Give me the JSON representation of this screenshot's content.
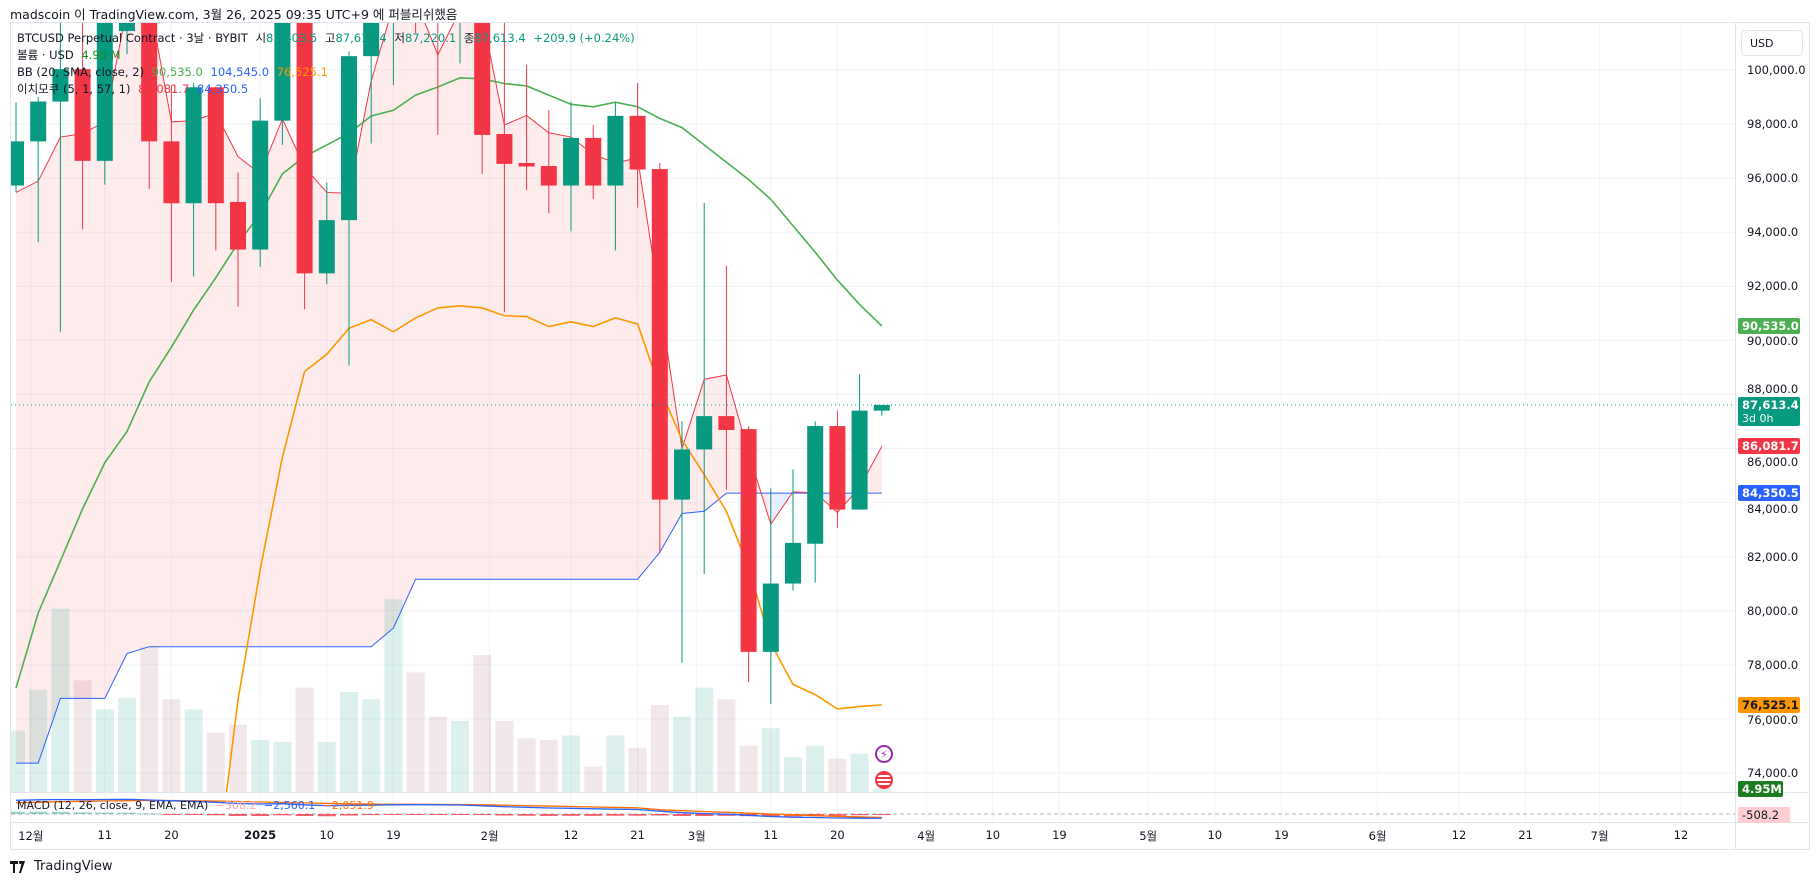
{
  "header": {
    "published_by": "madscoin 이 TradingView.com, 3월 26, 2025 09:35 UTC+9 에 퍼블리쉬했음"
  },
  "legend": {
    "symbol": "BTCUSD Perpetual Contract · 3날 · BYBIT",
    "open_label": "시",
    "open": "87,403.5",
    "high_label": "고",
    "high": "87,613.4",
    "low_label": "저",
    "low": "87,220.1",
    "close_label": "종",
    "close": "87,613.4",
    "change": "+209.9 (+0.24%)",
    "volume_label": "볼륨 · USD",
    "volume": "4.95 M",
    "bb_label": "BB (20, SMA, close, 2)",
    "bb_basis": "90,535.0",
    "bb_upper": "104,545.0",
    "bb_lower": "76,525.1",
    "ichimoku_label": "이치모쿠 (5, 1, 57, 1)",
    "ichimoku_conversion": "86,081.7",
    "ichimoku_base": "84,350.5",
    "macd_label": "MACD (12, 26, close, 9, EMA, EMA)",
    "macd_hist": "−508.2",
    "macd_line": "−2,560.1",
    "macd_signal": "−2,051.9"
  },
  "axis": {
    "currency": "USD",
    "price_ticks": [
      "100,000.0",
      "98,000.0",
      "96,000.0",
      "94,000.0",
      "92,000.0",
      "90,000.0",
      "88,000.0",
      "86,000.0",
      "84,000.0",
      "82,000.0",
      "80,000.0",
      "78,000.0",
      "76,000.0",
      "74,000.0"
    ],
    "price_tick_values": [
      100000,
      98000,
      96000,
      94000,
      92000,
      90000,
      88000,
      86000,
      84000,
      82000,
      80000,
      78000,
      76000,
      74000
    ],
    "time_labels": [
      {
        "label": "12월",
        "date": "2024-12-01"
      },
      {
        "label": "11",
        "date": "2024-12-11"
      },
      {
        "label": "20",
        "date": "2024-12-20"
      },
      {
        "label": "2025",
        "date": "2025-01-01",
        "bold": true
      },
      {
        "label": "10",
        "date": "2025-01-10"
      },
      {
        "label": "19",
        "date": "2025-01-19"
      },
      {
        "label": "2월",
        "date": "2025-02-01"
      },
      {
        "label": "12",
        "date": "2025-02-12"
      },
      {
        "label": "21",
        "date": "2025-02-21"
      },
      {
        "label": "3월",
        "date": "2025-03-01"
      },
      {
        "label": "11",
        "date": "2025-03-11"
      },
      {
        "label": "20",
        "date": "2025-03-20"
      },
      {
        "label": "4월",
        "date": "2025-04-01"
      },
      {
        "label": "10",
        "date": "2025-04-10"
      },
      {
        "label": "19",
        "date": "2025-04-19"
      },
      {
        "label": "5월",
        "date": "2025-05-01"
      },
      {
        "label": "10",
        "date": "2025-05-10"
      },
      {
        "label": "19",
        "date": "2025-05-19"
      },
      {
        "label": "6월",
        "date": "2025-06-01"
      },
      {
        "label": "12",
        "date": "2025-06-12"
      },
      {
        "label": "21",
        "date": "2025-06-21"
      },
      {
        "label": "7월",
        "date": "2025-07-01"
      },
      {
        "label": "12",
        "date": "2025-07-12"
      }
    ]
  },
  "tags": [
    {
      "name": "bb-basis-tag",
      "value": 90535.0,
      "text": "90,535.0",
      "bg": "#4caf50",
      "fg": "#ffffff"
    },
    {
      "name": "last-price-tag",
      "value": 87613.4,
      "text": "87,613.4",
      "sub": "3d 0h",
      "bg": "#089981",
      "fg": "#ffffff"
    },
    {
      "name": "ichimoku-conversion-tag",
      "value": 86081.7,
      "text": "86,081.7",
      "bg": "#f23645",
      "fg": "#ffffff"
    },
    {
      "name": "ichimoku-base-tag",
      "value": 84350.5,
      "text": "84,350.5",
      "bg": "#2962ff",
      "fg": "#ffffff"
    },
    {
      "name": "bb-lower-tag",
      "value": 76525.1,
      "text": "76,525.1",
      "bg": "#ff9800",
      "fg": "#131722"
    }
  ],
  "volume_tag": {
    "text": "4.95M",
    "bg": "#1b7d1f"
  },
  "macd_tag": {
    "text": "-508.2",
    "bg": "#ffcdd2"
  },
  "icons": {
    "events": "lightning-icon",
    "economic": "us-flag-icon"
  },
  "footer": {
    "brand": "TradingView"
  },
  "colors": {
    "up": "#089981",
    "down": "#f23645",
    "bb_basis": "#4caf50",
    "bb_lower": "#ff9800",
    "conversion": "#f23645",
    "base": "#2962ff",
    "macd": "#2962ff",
    "signal": "#ff6d00"
  },
  "chart_data": {
    "type": "candlestick",
    "interval": "3D",
    "ylim": [
      73000,
      101600
    ],
    "grid": true,
    "candles": [
      {
        "t": "2024-11-29",
        "o": 95728,
        "h": 98800,
        "l": 95472,
        "c": 97360
      },
      {
        "t": "2024-12-02",
        "o": 97360,
        "h": 99000,
        "l": 93632,
        "c": 98832
      },
      {
        "t": "2024-12-05",
        "o": 98832,
        "h": 101800,
        "l": 90320,
        "c": 100032
      },
      {
        "t": "2024-12-08",
        "o": 100032,
        "h": 101900,
        "l": 94112,
        "c": 96640
      },
      {
        "t": "2024-12-11",
        "o": 96640,
        "h": 103600,
        "l": 95760,
        "c": 102500
      },
      {
        "t": "2024-12-14",
        "o": 101440,
        "h": 104500,
        "l": 100592,
        "c": 103800
      },
      {
        "t": "2024-12-17",
        "o": 103800,
        "h": 104800,
        "l": 95600,
        "c": 97360
      },
      {
        "t": "2024-12-20",
        "o": 97360,
        "h": 99440,
        "l": 92160,
        "c": 95072
      },
      {
        "t": "2024-12-23",
        "o": 95072,
        "h": 99520,
        "l": 92368,
        "c": 99360
      },
      {
        "t": "2024-12-26",
        "o": 99360,
        "h": 99400,
        "l": 93328,
        "c": 95072
      },
      {
        "t": "2024-12-29",
        "o": 95120,
        "h": 96208,
        "l": 91248,
        "c": 93360
      },
      {
        "t": "2025-01-01",
        "o": 93360,
        "h": 98960,
        "l": 92720,
        "c": 98128
      },
      {
        "t": "2025-01-04",
        "o": 98128,
        "h": 103500,
        "l": 97232,
        "c": 102600
      },
      {
        "t": "2025-01-07",
        "o": 102600,
        "h": 103200,
        "l": 91152,
        "c": 92480
      },
      {
        "t": "2025-01-10",
        "o": 92480,
        "h": 95840,
        "l": 92080,
        "c": 94448
      },
      {
        "t": "2025-01-13",
        "o": 94448,
        "h": 100688,
        "l": 89072,
        "c": 100512
      },
      {
        "t": "2025-01-16",
        "o": 100512,
        "h": 103000,
        "l": 97280,
        "c": 102400
      },
      {
        "t": "2025-01-19",
        "o": 102400,
        "h": 105500,
        "l": 99440,
        "c": 104200
      },
      {
        "t": "2025-01-22",
        "o": 104200,
        "h": 105800,
        "l": 101360,
        "c": 102800
      },
      {
        "t": "2025-01-25",
        "o": 102800,
        "h": 104000,
        "l": 97600,
        "c": 102000
      },
      {
        "t": "2025-01-28",
        "o": 102000,
        "h": 105000,
        "l": 100240,
        "c": 104000
      },
      {
        "t": "2025-01-31",
        "o": 104000,
        "h": 105200,
        "l": 96160,
        "c": 97600
      },
      {
        "t": "2025-02-03",
        "o": 97632,
        "h": 102500,
        "l": 91040,
        "c": 96528
      },
      {
        "t": "2025-02-06",
        "o": 96560,
        "h": 100192,
        "l": 95552,
        "c": 96432
      },
      {
        "t": "2025-02-09",
        "o": 96448,
        "h": 98512,
        "l": 94704,
        "c": 95728
      },
      {
        "t": "2025-02-12",
        "o": 95728,
        "h": 98832,
        "l": 94032,
        "c": 97488
      },
      {
        "t": "2025-02-15",
        "o": 97488,
        "h": 97968,
        "l": 95232,
        "c": 95728
      },
      {
        "t": "2025-02-18",
        "o": 95728,
        "h": 98800,
        "l": 93328,
        "c": 98304
      },
      {
        "t": "2025-02-21",
        "o": 98304,
        "h": 99520,
        "l": 94912,
        "c": 96320
      },
      {
        "t": "2025-02-24",
        "o": 96336,
        "h": 96560,
        "l": 82128,
        "c": 84112
      },
      {
        "t": "2025-02-27",
        "o": 84112,
        "h": 87008,
        "l": 78080,
        "c": 85968
      },
      {
        "t": "2025-03-02",
        "o": 85968,
        "h": 95088,
        "l": 81360,
        "c": 87200
      },
      {
        "t": "2025-03-05",
        "o": 87200,
        "h": 92768,
        "l": 84480,
        "c": 86688
      },
      {
        "t": "2025-03-08",
        "o": 86720,
        "h": 86832,
        "l": 77360,
        "c": 78480
      },
      {
        "t": "2025-03-11",
        "o": 78480,
        "h": 84528,
        "l": 76556,
        "c": 81008
      },
      {
        "t": "2025-03-14",
        "o": 81008,
        "h": 85232,
        "l": 80752,
        "c": 82512
      },
      {
        "t": "2025-03-17",
        "o": 82480,
        "h": 87008,
        "l": 81040,
        "c": 86832
      },
      {
        "t": "2025-03-20",
        "o": 86832,
        "h": 87408,
        "l": 83072,
        "c": 83744
      },
      {
        "t": "2025-03-23",
        "o": 83744,
        "h": 88752,
        "l": 83744,
        "c": 87403.5
      },
      {
        "t": "2025-03-26",
        "o": 87403.5,
        "h": 87613.4,
        "l": 87220.1,
        "c": 87613.4
      }
    ],
    "volume_millions": [
      85,
      141,
      253,
      154,
      114,
      130,
      200,
      128,
      114,
      82,
      93,
      72,
      69,
      144,
      69,
      138,
      128,
      266,
      165,
      104,
      98,
      189,
      98,
      74,
      72,
      78,
      35,
      78,
      61,
      120,
      104,
      144,
      128,
      64,
      88,
      48,
      64,
      46,
      53,
      4.95
    ],
    "bb_basis": [
      77143,
      79920,
      81843,
      83770,
      85480,
      86630,
      88470,
      89750,
      91120,
      92320,
      93600,
      94666,
      96160,
      96800,
      97230,
      97660,
      98300,
      98510,
      99070,
      99370,
      99710,
      99670,
      99500,
      99410,
      99070,
      98730,
      98640,
      98810,
      98640,
      98210,
      97870,
      97230,
      96590,
      95950,
      95220,
      94240,
      93260,
      92230,
      91330,
      90535.0
    ],
    "bb_lower": [
      null,
      null,
      null,
      null,
      null,
      null,
      null,
      null,
      null,
      70100,
      76700,
      81520,
      85680,
      88848,
      89488,
      90448,
      90768,
      90320,
      90832,
      91200,
      91280,
      91200,
      90912,
      90880,
      90512,
      90688,
      90512,
      90832,
      90608,
      88240,
      86320,
      85040,
      83680,
      81600,
      78800,
      77280,
      76900,
      76370,
      76460,
      76525.1
    ],
    "ichimoku_conversion": [
      95472,
      95888,
      97520,
      97648,
      98080,
      102300,
      102600,
      98080,
      98128,
      98400,
      96800,
      96160,
      98192,
      96400,
      95472,
      95440,
      99600,
      102400,
      102600,
      100560,
      102200,
      102000,
      97968,
      98320,
      97680,
      97520,
      96880,
      96560,
      96752,
      91440,
      86000,
      88560,
      88720,
      85840,
      83200,
      84400,
      84368,
      83632,
      84560,
      86081.7
    ],
    "ichimoku_base": [
      74365,
      74365,
      76760,
      76760,
      76760,
      78420,
      78672,
      78672,
      78672,
      78672,
      78672,
      78672,
      78672,
      78672,
      78672,
      78672,
      78672,
      79360,
      81168,
      81168,
      81168,
      81168,
      81168,
      81168,
      81168,
      81168,
      81168,
      81168,
      81168,
      82160,
      83600,
      83680,
      84350.5,
      84350.5,
      84350.5,
      84350.5,
      84350.5,
      84350.5,
      84350.5,
      84350.5
    ],
    "macd": [
      8200,
      8500,
      8700,
      8600,
      8700,
      8800,
      8400,
      7900,
      7600,
      7000,
      6300,
      6000,
      6200,
      5500,
      5000,
      5200,
      5300,
      5500,
      5600,
      5500,
      5400,
      4900,
      4400,
      4000,
      3600,
      3400,
      3100,
      2900,
      2700,
      1700,
      800,
      300,
      -100,
      -800,
      -1500,
      -1900,
      -2100,
      -2400,
      -2500,
      -2560.1
    ],
    "macd_signal": [
      6800,
      7100,
      7400,
      7600,
      7800,
      8000,
      8100,
      8050,
      7960,
      7770,
      7480,
      7190,
      6990,
      6690,
      6350,
      6120,
      5960,
      5870,
      5820,
      5760,
      5690,
      5530,
      5300,
      5040,
      4750,
      4480,
      4200,
      3940,
      3690,
      2600,
      2000,
      1500,
      1000,
      500,
      0,
      -500,
      -1000,
      -1400,
      -1750,
      -2051.9
    ],
    "last_price": 87613.4
  }
}
